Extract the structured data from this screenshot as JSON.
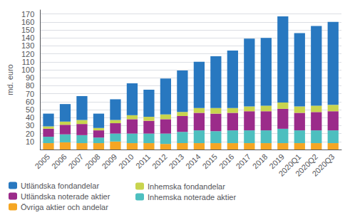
{
  "chart_data": {
    "type": "bar",
    "stacked": true,
    "categories": [
      "2005",
      "2006",
      "2007",
      "2008",
      "2009",
      "2010",
      "2011",
      "2012",
      "2013",
      "2014",
      "2015",
      "2016",
      "2017",
      "2018",
      "2019",
      "2020Q1",
      "2020Q2",
      "2020Q3"
    ],
    "series": [
      {
        "name": "Övriga aktier och andelar",
        "color": "#f5a623",
        "values": [
          8,
          9,
          8,
          8,
          10,
          8,
          8,
          7,
          8,
          8,
          8,
          8,
          8,
          8,
          8,
          8,
          8,
          8
        ]
      },
      {
        "name": "Inhemska noterade aktier",
        "color": "#4dbfbf",
        "values": [
          8,
          10,
          10,
          7,
          10,
          12,
          12,
          13,
          14,
          16,
          15,
          16,
          16,
          16,
          18,
          16,
          16,
          16
        ]
      },
      {
        "name": "Utländska noterade aktier",
        "color": "#9b2b8a",
        "values": [
          10,
          12,
          14,
          9,
          13,
          18,
          16,
          18,
          20,
          22,
          22,
          22,
          24,
          24,
          25,
          22,
          23,
          24
        ]
      },
      {
        "name": "Inhemska fondandelar",
        "color": "#c8d44e",
        "values": [
          3,
          4,
          5,
          3,
          4,
          5,
          5,
          6,
          5,
          6,
          7,
          6,
          6,
          7,
          8,
          8,
          8,
          8
        ]
      },
      {
        "name": "Utländska fondandelar",
        "color": "#2878c0",
        "values": [
          16,
          22,
          30,
          18,
          26,
          40,
          34,
          45,
          52,
          58,
          65,
          72,
          85,
          85,
          108,
          92,
          100,
          104
        ]
      }
    ],
    "ylabel": "md. euro",
    "ylim": [
      0,
      175
    ],
    "yticks": [
      10,
      20,
      30,
      40,
      50,
      60,
      70,
      80,
      90,
      100,
      110,
      120,
      130,
      140,
      150,
      160,
      170
    ],
    "grid": true,
    "legend": "lower left"
  }
}
